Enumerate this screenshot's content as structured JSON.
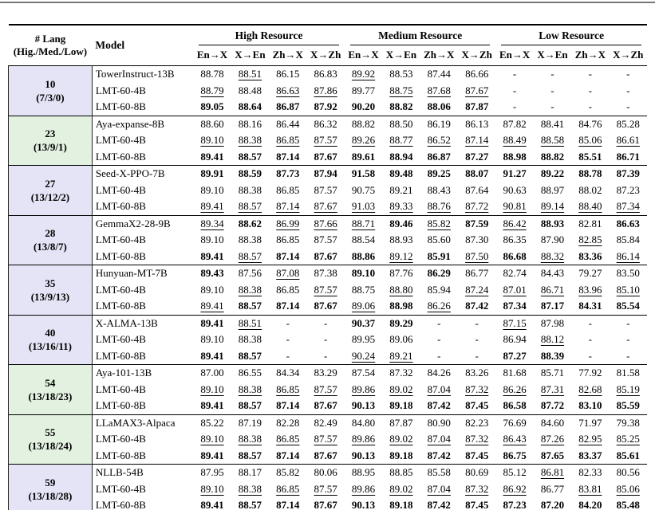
{
  "header": {
    "lang_line1": "# Lang",
    "lang_line2": "(Hig./Med./Low)",
    "model": "Model",
    "groups": [
      "High Resource",
      "Medium Resource",
      "Low Resource"
    ],
    "directions": [
      "En→X",
      "X→En",
      "Zh→X",
      "X→Zh"
    ]
  },
  "colors": {
    "lavender": "#e4e4f6",
    "green": "#e2f1e0"
  },
  "value_format_legend": {
    "b": "bold",
    "u": "underline",
    "-": "not available"
  },
  "groups": [
    {
      "lang": "10",
      "dist": "(7/3/0)",
      "color": "lavender",
      "rows": [
        {
          "model": "TowerInstruct-13B",
          "values": [
            "88.78",
            "88.51|u",
            "86.15",
            "86.83",
            "89.92|u",
            "88.53",
            "87.44",
            "86.66",
            "-",
            "-",
            "-",
            "-"
          ]
        },
        {
          "model": "LMT-60-4B",
          "values": [
            "88.79|u",
            "88.48",
            "86.63|u",
            "87.86|u",
            "89.77",
            "88.75|u",
            "87.68|u",
            "87.67|u",
            "-",
            "-",
            "-",
            "-"
          ]
        },
        {
          "model": "LMT-60-8B",
          "values": [
            "89.05|b",
            "88.64|b",
            "86.87|b",
            "87.92|b",
            "90.20|b",
            "88.82|b",
            "88.06|b",
            "87.87|b",
            "-",
            "-",
            "-",
            "-"
          ]
        }
      ]
    },
    {
      "lang": "23",
      "dist": "(13/9/1)",
      "color": "green",
      "rows": [
        {
          "model": "Aya-expanse-8B",
          "values": [
            "88.60",
            "88.16",
            "86.44",
            "86.32",
            "88.82",
            "88.50",
            "86.19",
            "86.13",
            "87.82",
            "88.41",
            "84.76",
            "85.28"
          ]
        },
        {
          "model": "LMT-60-4B",
          "values": [
            "89.10|u",
            "88.38|u",
            "86.85|u",
            "87.57|u",
            "89.26|u",
            "88.77|u",
            "86.52|u",
            "87.14|u",
            "88.49|u",
            "88.58|u",
            "85.06|u",
            "86.61|u"
          ]
        },
        {
          "model": "LMT-60-8B",
          "values": [
            "89.41|b",
            "88.57|b",
            "87.14|b",
            "87.67|b",
            "89.61|b",
            "88.94|b",
            "86.87|b",
            "87.27|b",
            "88.98|b",
            "88.82|b",
            "85.51|b",
            "86.71|b"
          ]
        }
      ]
    },
    {
      "lang": "27",
      "dist": "(13/12/2)",
      "color": "lavender",
      "rows": [
        {
          "model": "Seed-X-PPO-7B",
          "values": [
            "89.91|b",
            "88.59|b",
            "87.73|b",
            "87.94|b",
            "91.58|b",
            "89.48|b",
            "89.25|b",
            "88.07|b",
            "91.27|b",
            "89.22|b",
            "88.78|b",
            "87.39|b"
          ]
        },
        {
          "model": "LMT-60-4B",
          "values": [
            "89.10",
            "88.38",
            "86.85",
            "87.57",
            "90.75",
            "89.21",
            "88.43",
            "87.64",
            "90.63",
            "88.97",
            "88.02",
            "87.23"
          ]
        },
        {
          "model": "LMT-60-8B",
          "values": [
            "89.41|u",
            "88.57|u",
            "87.14|u",
            "87.67|u",
            "91.03|u",
            "89.33|u",
            "88.76|u",
            "87.72|u",
            "90.81|u",
            "89.14|u",
            "88.40|u",
            "87.34|u"
          ]
        }
      ]
    },
    {
      "lang": "28",
      "dist": "(13/8/7)",
      "color": "lavender",
      "rows": [
        {
          "model": "GemmaX2-28-9B",
          "values": [
            "89.34|u",
            "88.62|b",
            "86.99|u",
            "87.66|u",
            "88.71|u",
            "89.46|b",
            "85.82|u",
            "87.59|b",
            "86.42|u",
            "88.93|b",
            "82.81",
            "86.63|b"
          ]
        },
        {
          "model": "LMT-60-4B",
          "values": [
            "89.10",
            "88.38",
            "86.85",
            "87.57",
            "88.54",
            "88.93",
            "85.60",
            "87.30",
            "86.35",
            "87.90",
            "82.85|u",
            "85.84"
          ]
        },
        {
          "model": "LMT-60-8B",
          "values": [
            "89.41|b",
            "88.57|u",
            "87.14|b",
            "87.67|b",
            "88.86|b",
            "89.12|u",
            "85.91|b",
            "87.50|u",
            "86.68|b",
            "88.32|u",
            "83.36|b",
            "86.14|u"
          ]
        }
      ]
    },
    {
      "lang": "35",
      "dist": "(13/9/13)",
      "color": "lavender",
      "rows": [
        {
          "model": "Hunyuan-MT-7B",
          "values": [
            "89.43|b",
            "87.56",
            "87.08|u",
            "87.38",
            "89.10|b",
            "87.76",
            "86.29|b",
            "86.77",
            "82.74",
            "84.43",
            "79.27",
            "83.50"
          ]
        },
        {
          "model": "LMT-60-4B",
          "values": [
            "89.10",
            "88.38|u",
            "86.85",
            "87.57|u",
            "88.75",
            "88.80|u",
            "85.94",
            "87.24|u",
            "87.01|u",
            "86.71|u",
            "83.96|u",
            "85.10|u"
          ]
        },
        {
          "model": "LMT-60-8B",
          "values": [
            "89.41|u",
            "88.57|b",
            "87.14|b",
            "87.67|b",
            "89.06|u",
            "88.98|b",
            "86.26|u",
            "87.42|b",
            "87.34|b",
            "87.17|b",
            "84.31|b",
            "85.54|b"
          ]
        }
      ]
    },
    {
      "lang": "40",
      "dist": "(13/16/11)",
      "color": "lavender",
      "rows": [
        {
          "model": "X-ALMA-13B",
          "values": [
            "89.41|b",
            "88.51|u",
            "-",
            "-",
            "90.37|b",
            "89.29|b",
            "-",
            "-",
            "87.15|u",
            "87.98",
            "-",
            "-"
          ]
        },
        {
          "model": "LMT-60-4B",
          "values": [
            "89.10",
            "88.38",
            "-",
            "-",
            "89.95",
            "89.06",
            "-",
            "-",
            "86.94",
            "88.12|u",
            "-",
            "-"
          ]
        },
        {
          "model": "LMT-60-8B",
          "values": [
            "89.41|b",
            "88.57|b",
            "-",
            "-",
            "90.24|u",
            "89.21|u",
            "-",
            "-",
            "87.27|b",
            "88.39|b",
            "-",
            "-"
          ]
        }
      ]
    },
    {
      "lang": "54",
      "dist": "(13/18/23)",
      "color": "green",
      "rows": [
        {
          "model": "Aya-101-13B",
          "values": [
            "87.00",
            "86.55",
            "84.34",
            "83.29",
            "87.54",
            "87.32",
            "84.26",
            "83.26",
            "81.68",
            "85.71",
            "77.92",
            "81.58"
          ]
        },
        {
          "model": "LMT-60-4B",
          "values": [
            "89.10|u",
            "88.38|u",
            "86.85|u",
            "87.57|u",
            "89.86|u",
            "89.02|u",
            "87.04|u",
            "87.32|u",
            "86.26|u",
            "87.31|u",
            "82.68|u",
            "85.19|u"
          ]
        },
        {
          "model": "LMT-60-8B",
          "values": [
            "89.41|b",
            "88.57|b",
            "87.14|b",
            "87.67|b",
            "90.13|b",
            "89.18|b",
            "87.42|b",
            "87.45|b",
            "86.58|b",
            "87.72|b",
            "83.10|b",
            "85.59|b"
          ]
        }
      ]
    },
    {
      "lang": "55",
      "dist": "(13/18/24)",
      "color": "green",
      "rows": [
        {
          "model": "LLaMAX3-Alpaca",
          "values": [
            "85.22",
            "87.19",
            "82.28",
            "82.49",
            "84.80",
            "87.87",
            "80.90",
            "82.23",
            "76.69",
            "84.60",
            "71.97",
            "79.38"
          ]
        },
        {
          "model": "LMT-60-4B",
          "values": [
            "89.10|u",
            "88.38|u",
            "86.85|u",
            "87.57|u",
            "89.86|u",
            "89.02|u",
            "87.04|u",
            "87.32|u",
            "86.43|u",
            "87.26|u",
            "82.95|u",
            "85.25|u"
          ]
        },
        {
          "model": "LMT-60-8B",
          "values": [
            "89.41|b",
            "88.57|b",
            "87.14|b",
            "87.67|b",
            "90.13|b",
            "89.18|b",
            "87.42|b",
            "87.45|b",
            "86.75|b",
            "87.65|b",
            "83.37|b",
            "85.61|b"
          ]
        }
      ]
    },
    {
      "lang": "59",
      "dist": "(13/18/28)",
      "color": "lavender",
      "rows": [
        {
          "model": "NLLB-54B",
          "values": [
            "87.95",
            "88.17",
            "85.82",
            "80.06",
            "88.95",
            "88.85",
            "85.58",
            "80.69",
            "85.12",
            "86.81|u",
            "82.33",
            "80.56"
          ]
        },
        {
          "model": "LMT-60-4B",
          "values": [
            "89.10|u",
            "88.38|u",
            "86.85|u",
            "87.57|u",
            "89.86|u",
            "89.02|u",
            "87.04|u",
            "87.32|u",
            "86.92|u",
            "86.77",
            "83.81|u",
            "85.06|u"
          ]
        },
        {
          "model": "LMT-60-8B",
          "values": [
            "89.41|b",
            "88.57|b",
            "87.14|b",
            "87.67|b",
            "90.13|b",
            "89.18|b",
            "87.42|b",
            "87.45|b",
            "87.23|b",
            "87.20|b",
            "84.20|b",
            "85.48|b"
          ]
        }
      ]
    }
  ]
}
